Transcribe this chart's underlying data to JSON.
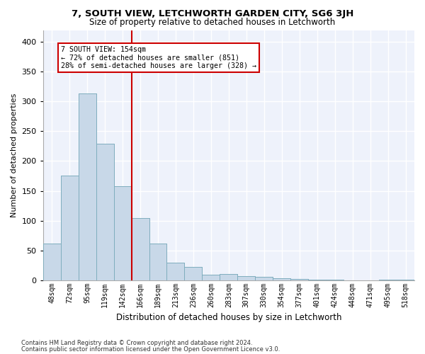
{
  "title": "7, SOUTH VIEW, LETCHWORTH GARDEN CITY, SG6 3JH",
  "subtitle": "Size of property relative to detached houses in Letchworth",
  "xlabel": "Distribution of detached houses by size in Letchworth",
  "ylabel": "Number of detached properties",
  "categories": [
    "48sqm",
    "72sqm",
    "95sqm",
    "119sqm",
    "142sqm",
    "166sqm",
    "189sqm",
    "213sqm",
    "236sqm",
    "260sqm",
    "283sqm",
    "307sqm",
    "330sqm",
    "354sqm",
    "377sqm",
    "401sqm",
    "424sqm",
    "448sqm",
    "471sqm",
    "495sqm",
    "518sqm"
  ],
  "values": [
    62,
    175,
    313,
    229,
    158,
    104,
    62,
    29,
    22,
    9,
    10,
    7,
    5,
    3,
    2,
    1,
    1,
    0,
    0,
    1,
    1
  ],
  "bar_color": "#c8d8e8",
  "bar_edge_color": "#7aaabb",
  "background_color": "#eef2fb",
  "grid_color": "#ffffff",
  "annotation_title": "7 SOUTH VIEW: 154sqm",
  "annotation_line1": "← 72% of detached houses are smaller (851)",
  "annotation_line2": "28% of semi-detached houses are larger (328) →",
  "ylim": [
    0,
    420
  ],
  "yticks": [
    0,
    50,
    100,
    150,
    200,
    250,
    300,
    350,
    400
  ],
  "red_line_x": 4.5,
  "footer_line1": "Contains HM Land Registry data © Crown copyright and database right 2024.",
  "footer_line2": "Contains public sector information licensed under the Open Government Licence v3.0."
}
